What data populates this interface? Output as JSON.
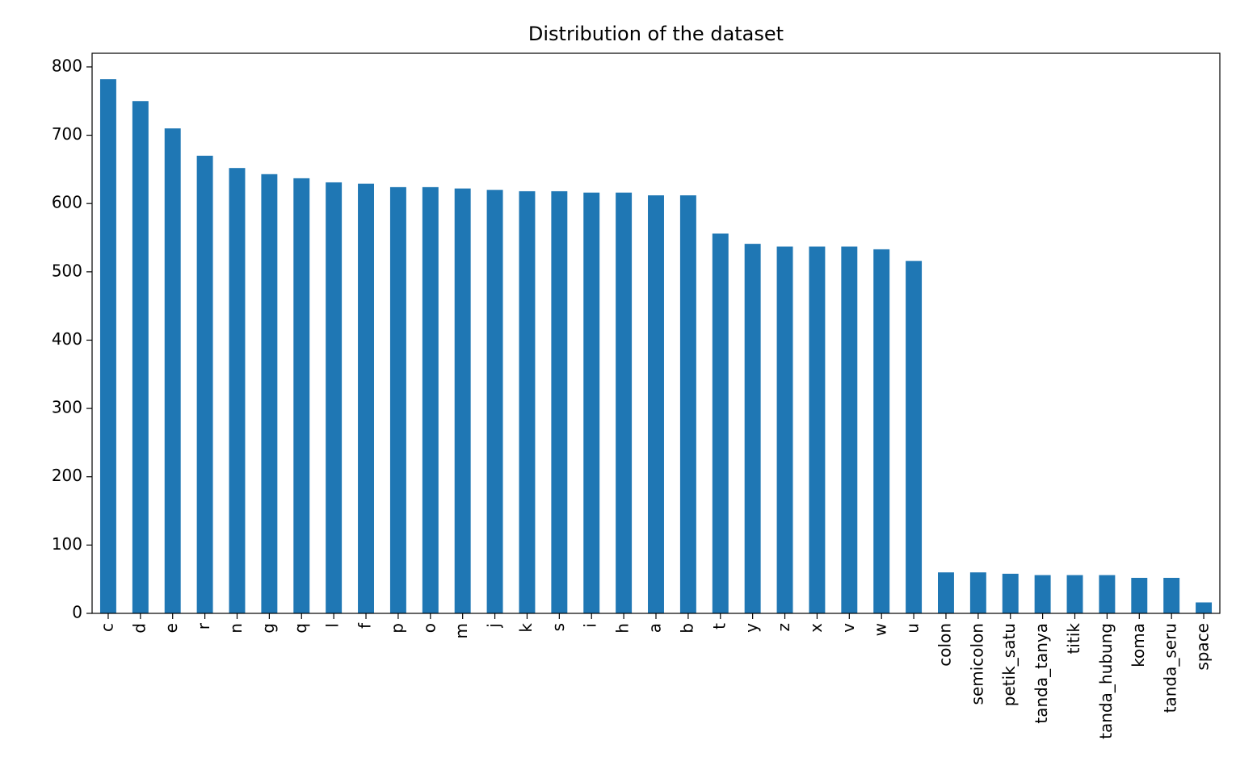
{
  "chart_data": {
    "type": "bar",
    "title": "Distribution of the dataset",
    "xlabel": "",
    "ylabel": "",
    "categories": [
      "c",
      "d",
      "e",
      "r",
      "n",
      "g",
      "q",
      "l",
      "f",
      "p",
      "o",
      "m",
      "j",
      "k",
      "s",
      "i",
      "h",
      "a",
      "b",
      "t",
      "y",
      "z",
      "x",
      "v",
      "w",
      "u",
      "colon",
      "semicolon",
      "petik_satu",
      "tanda_tanya",
      "titik",
      "tanda_hubung",
      "koma",
      "tanda_seru",
      "space"
    ],
    "values": [
      782,
      750,
      710,
      670,
      652,
      643,
      637,
      631,
      629,
      624,
      624,
      622,
      620,
      618,
      618,
      616,
      616,
      612,
      612,
      556,
      541,
      537,
      537,
      537,
      533,
      516,
      60,
      60,
      58,
      56,
      56,
      56,
      52,
      52,
      16
    ],
    "ylim": [
      0,
      820
    ],
    "yticks": [
      0,
      100,
      200,
      300,
      400,
      500,
      600,
      700,
      800
    ],
    "bar_color": "#1f77b4",
    "grid": false,
    "legend": "none"
  }
}
